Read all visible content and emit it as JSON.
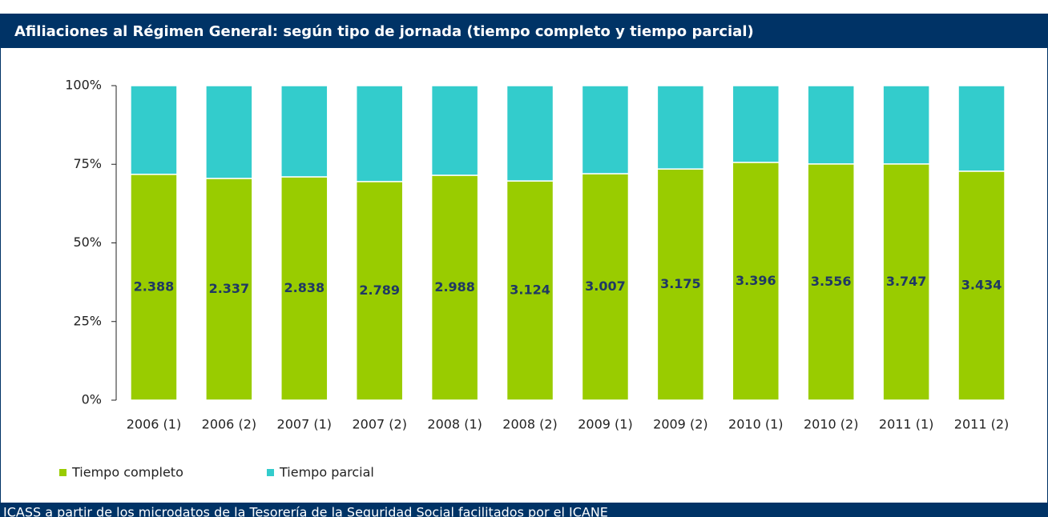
{
  "chart_data": {
    "type": "stacked_bar_100",
    "title": "Afiliaciones al Régimen General: según tipo de jornada (tiempo completo y tiempo parcial)",
    "source": "ICASS a partir de los microdatos de la Tesorería de la Seguridad Social facilitados por el ICANE",
    "categories": [
      "2006 (1)",
      "2006 (2)",
      "2007 (1)",
      "2007 (2)",
      "2008 (1)",
      "2008 (2)",
      "2009 (1)",
      "2009 (2)",
      "2010 (1)",
      "2010 (2)",
      "2011 (1)",
      "2011 (2)"
    ],
    "series": [
      {
        "name": "Tiempo completo",
        "color": "#99cc00",
        "values": [
          71.8,
          70.5,
          71.0,
          69.5,
          71.5,
          69.7,
          72.0,
          73.5,
          75.6,
          75.1,
          75.1,
          72.8
        ]
      },
      {
        "name": "Tiempo parcial",
        "color": "#33cccc",
        "values": [
          28.2,
          29.5,
          29.0,
          30.5,
          28.5,
          30.3,
          28.0,
          26.5,
          24.4,
          24.9,
          24.9,
          27.2
        ]
      }
    ],
    "bar_labels": [
      "2.388",
      "2.337",
      "2.838",
      "2.789",
      "2.988",
      "3.124",
      "3.007",
      "3.175",
      "3.396",
      "3.556",
      "3.747",
      "3.434"
    ],
    "ylim": [
      0,
      100
    ],
    "yticks": [
      {
        "value": 0,
        "label": "0%"
      },
      {
        "value": 25,
        "label": "25%"
      },
      {
        "value": 50,
        "label": "50%"
      },
      {
        "value": 75,
        "label": "75%"
      },
      {
        "value": 100,
        "label": "100%"
      }
    ],
    "legend": "bottom-left"
  }
}
